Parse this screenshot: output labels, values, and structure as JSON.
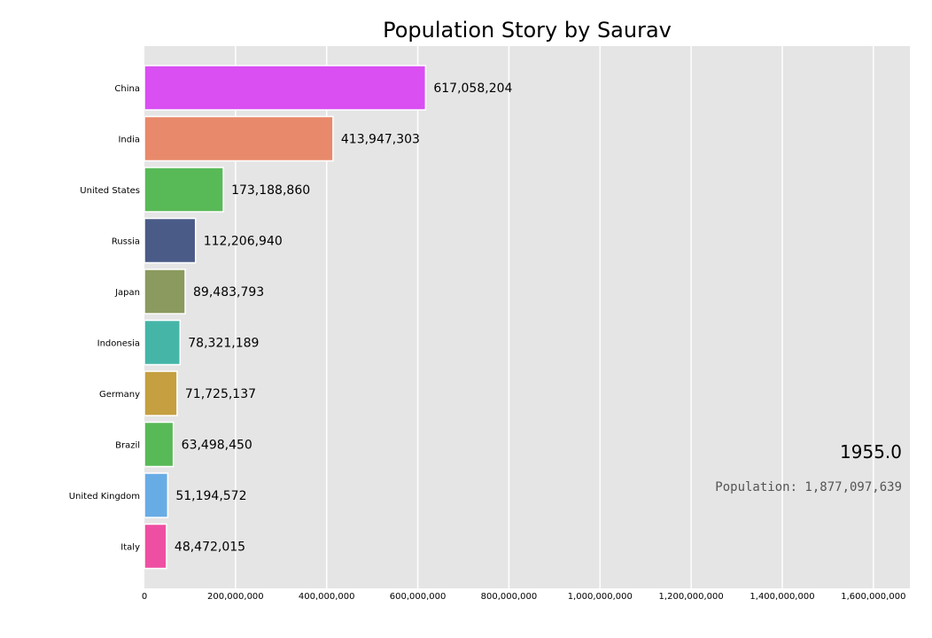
{
  "chart_data": {
    "type": "bar",
    "orientation": "horizontal",
    "title": "Population Story by Saurav",
    "year_label": "1955.0",
    "total_label": "Population: 1,877,097,639",
    "xlim": [
      0,
      1680000000
    ],
    "grid": true,
    "x_ticks": [
      0,
      200000000,
      400000000,
      600000000,
      800000000,
      1000000000,
      1200000000,
      1400000000,
      1600000000
    ],
    "x_tick_labels": [
      "0",
      "200,000,000",
      "400,000,000",
      "600,000,000",
      "800,000,000",
      "1,000,000,000",
      "1,200,000,000",
      "1,400,000,000",
      "1,600,000,000"
    ],
    "categories": [
      "China",
      "India",
      "United States",
      "Russia",
      "Japan",
      "Indonesia",
      "Germany",
      "Brazil",
      "United Kingdom",
      "Italy"
    ],
    "values": [
      617058204,
      413947303,
      173188860,
      112206940,
      89483793,
      78321189,
      71725137,
      63498450,
      51194572,
      48472015
    ],
    "value_labels": [
      "617,058,204",
      "413,947,303",
      "173,188,860",
      "112,206,940",
      "89,483,793",
      "78,321,189",
      "71,725,137",
      "63,498,450",
      "51,194,572",
      "48,472,015"
    ],
    "colors": [
      "#d94ff2",
      "#e8896b",
      "#58b957",
      "#4a5b87",
      "#8b9a5e",
      "#45b5a8",
      "#c59f40",
      "#58b957",
      "#68ace5",
      "#ee4fa2"
    ]
  }
}
